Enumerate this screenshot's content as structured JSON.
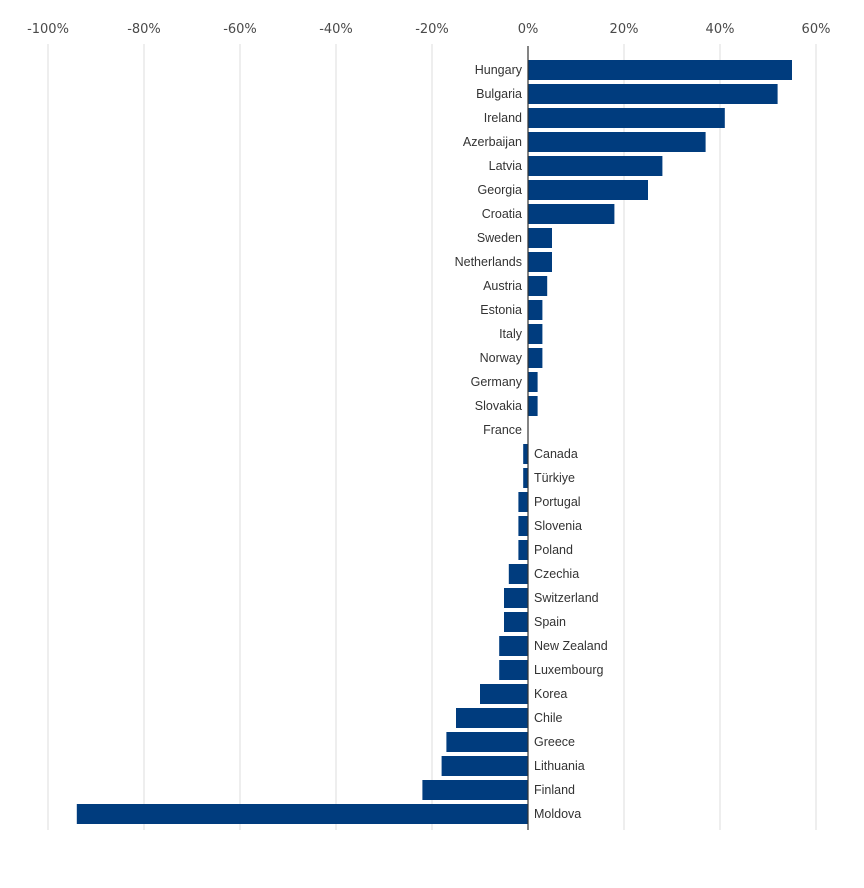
{
  "chart_data": {
    "type": "bar",
    "orientation": "horizontal",
    "title": "",
    "xlabel": "",
    "ylabel": "",
    "xlim": [
      -100,
      60
    ],
    "x_ticks": [
      -100,
      -80,
      -60,
      -40,
      -20,
      0,
      20,
      40,
      60
    ],
    "tick_labels": [
      "-100%",
      "-80%",
      "-60%",
      "-40%",
      "-20%",
      "0%",
      "20%",
      "40%",
      "60%"
    ],
    "tick_axis_position": "top",
    "grid": true,
    "bar_color": "#003c7e",
    "categories": [
      "Hungary",
      "Bulgaria",
      "Ireland",
      "Azerbaijan",
      "Latvia",
      "Georgia",
      "Croatia",
      "Sweden",
      "Netherlands",
      "Austria",
      "Estonia",
      "Italy",
      "Norway",
      "Germany",
      "Slovakia",
      "France",
      "Canada",
      "Türkiye",
      "Portugal",
      "Slovenia",
      "Poland",
      "Czechia",
      "Switzerland",
      "Spain",
      "New Zealand",
      "Luxembourg",
      "Korea",
      "Chile",
      "Greece",
      "Lithuania",
      "Finland",
      "Moldova"
    ],
    "values": [
      55,
      52,
      41,
      37,
      28,
      25,
      18,
      5,
      5,
      4,
      3,
      3,
      3,
      2,
      2,
      0,
      -1,
      -1,
      -2,
      -2,
      -2,
      -4,
      -5,
      -5,
      -6,
      -6,
      -10,
      -15,
      -17,
      -18,
      -22,
      -94
    ]
  }
}
